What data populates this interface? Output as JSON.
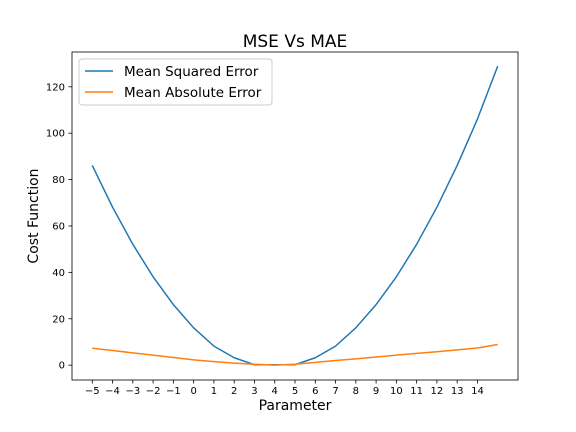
{
  "chart_data": {
    "type": "line",
    "title": "MSE Vs MAE",
    "xlabel": "Parameter",
    "ylabel": "Cost Function",
    "xlim": [
      -6.0,
      16.0
    ],
    "ylim": [
      -6.4,
      135.0
    ],
    "xticks": [
      -5,
      -4,
      -3,
      -2,
      -1,
      0,
      1,
      2,
      3,
      4,
      5,
      6,
      7,
      8,
      9,
      10,
      11,
      12,
      13,
      14
    ],
    "yticks": [
      0,
      20,
      40,
      60,
      80,
      100,
      120
    ],
    "grid": false,
    "legend_position": "top-left",
    "x": [
      -5,
      -4,
      -3,
      -2,
      -1,
      0,
      1,
      2,
      3,
      4,
      5,
      6,
      7,
      8,
      9,
      10,
      11,
      12,
      13,
      14,
      15
    ],
    "series": [
      {
        "name": "Mean Squared Error",
        "color": "#1f77b4",
        "values": [
          86.1,
          68.1,
          52.1,
          38.1,
          26.1,
          16.1,
          8.2,
          3.2,
          0.2,
          0.2,
          0.2,
          3.2,
          8.2,
          16.1,
          26.1,
          38.1,
          52.1,
          68.1,
          86.1,
          106.1,
          128.9
        ]
      },
      {
        "name": "Mean Absolute Error",
        "color": "#ff7f0e",
        "values": [
          7.3,
          6.3,
          5.3,
          4.3,
          3.3,
          2.3,
          1.5,
          0.9,
          0.4,
          0.0,
          0.4,
          1.2,
          2.0,
          2.7,
          3.5,
          4.3,
          5.1,
          5.8,
          6.6,
          7.4,
          8.9
        ]
      }
    ]
  }
}
